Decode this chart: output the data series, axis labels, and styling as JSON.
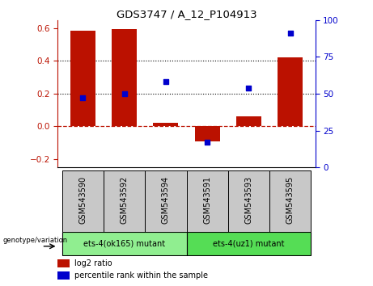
{
  "title": "GDS3747 / A_12_P104913",
  "samples": [
    "GSM543590",
    "GSM543592",
    "GSM543594",
    "GSM543591",
    "GSM543593",
    "GSM543595"
  ],
  "log2_ratio": [
    0.585,
    0.595,
    0.02,
    -0.09,
    0.06,
    0.42
  ],
  "percentile_rank": [
    47,
    50,
    58,
    17,
    54,
    91
  ],
  "bar_color": "#BB1100",
  "dot_color": "#0000CC",
  "ylim_left": [
    -0.25,
    0.65
  ],
  "ylim_right": [
    0,
    100
  ],
  "yticks_left": [
    -0.2,
    0.0,
    0.2,
    0.4,
    0.6
  ],
  "yticks_right": [
    0,
    25,
    50,
    75,
    100
  ],
  "hlines": [
    0.2,
    0.4
  ],
  "zero_line_color": "#BB1100",
  "group1_color": "#90EE90",
  "group2_color": "#55DD55",
  "group1_label": "ets-4(ok165) mutant",
  "group2_label": "ets-4(uz1) mutant",
  "group1_samples": [
    0,
    1,
    2
  ],
  "group2_samples": [
    3,
    4,
    5
  ],
  "genotype_label": "genotype/variation",
  "legend_items": [
    {
      "label": "log2 ratio",
      "color": "#BB1100"
    },
    {
      "label": "percentile rank within the sample",
      "color": "#0000CC"
    }
  ],
  "bg_gray": "#C8C8C8",
  "label_fontsize": 7,
  "tick_fontsize": 7.5
}
